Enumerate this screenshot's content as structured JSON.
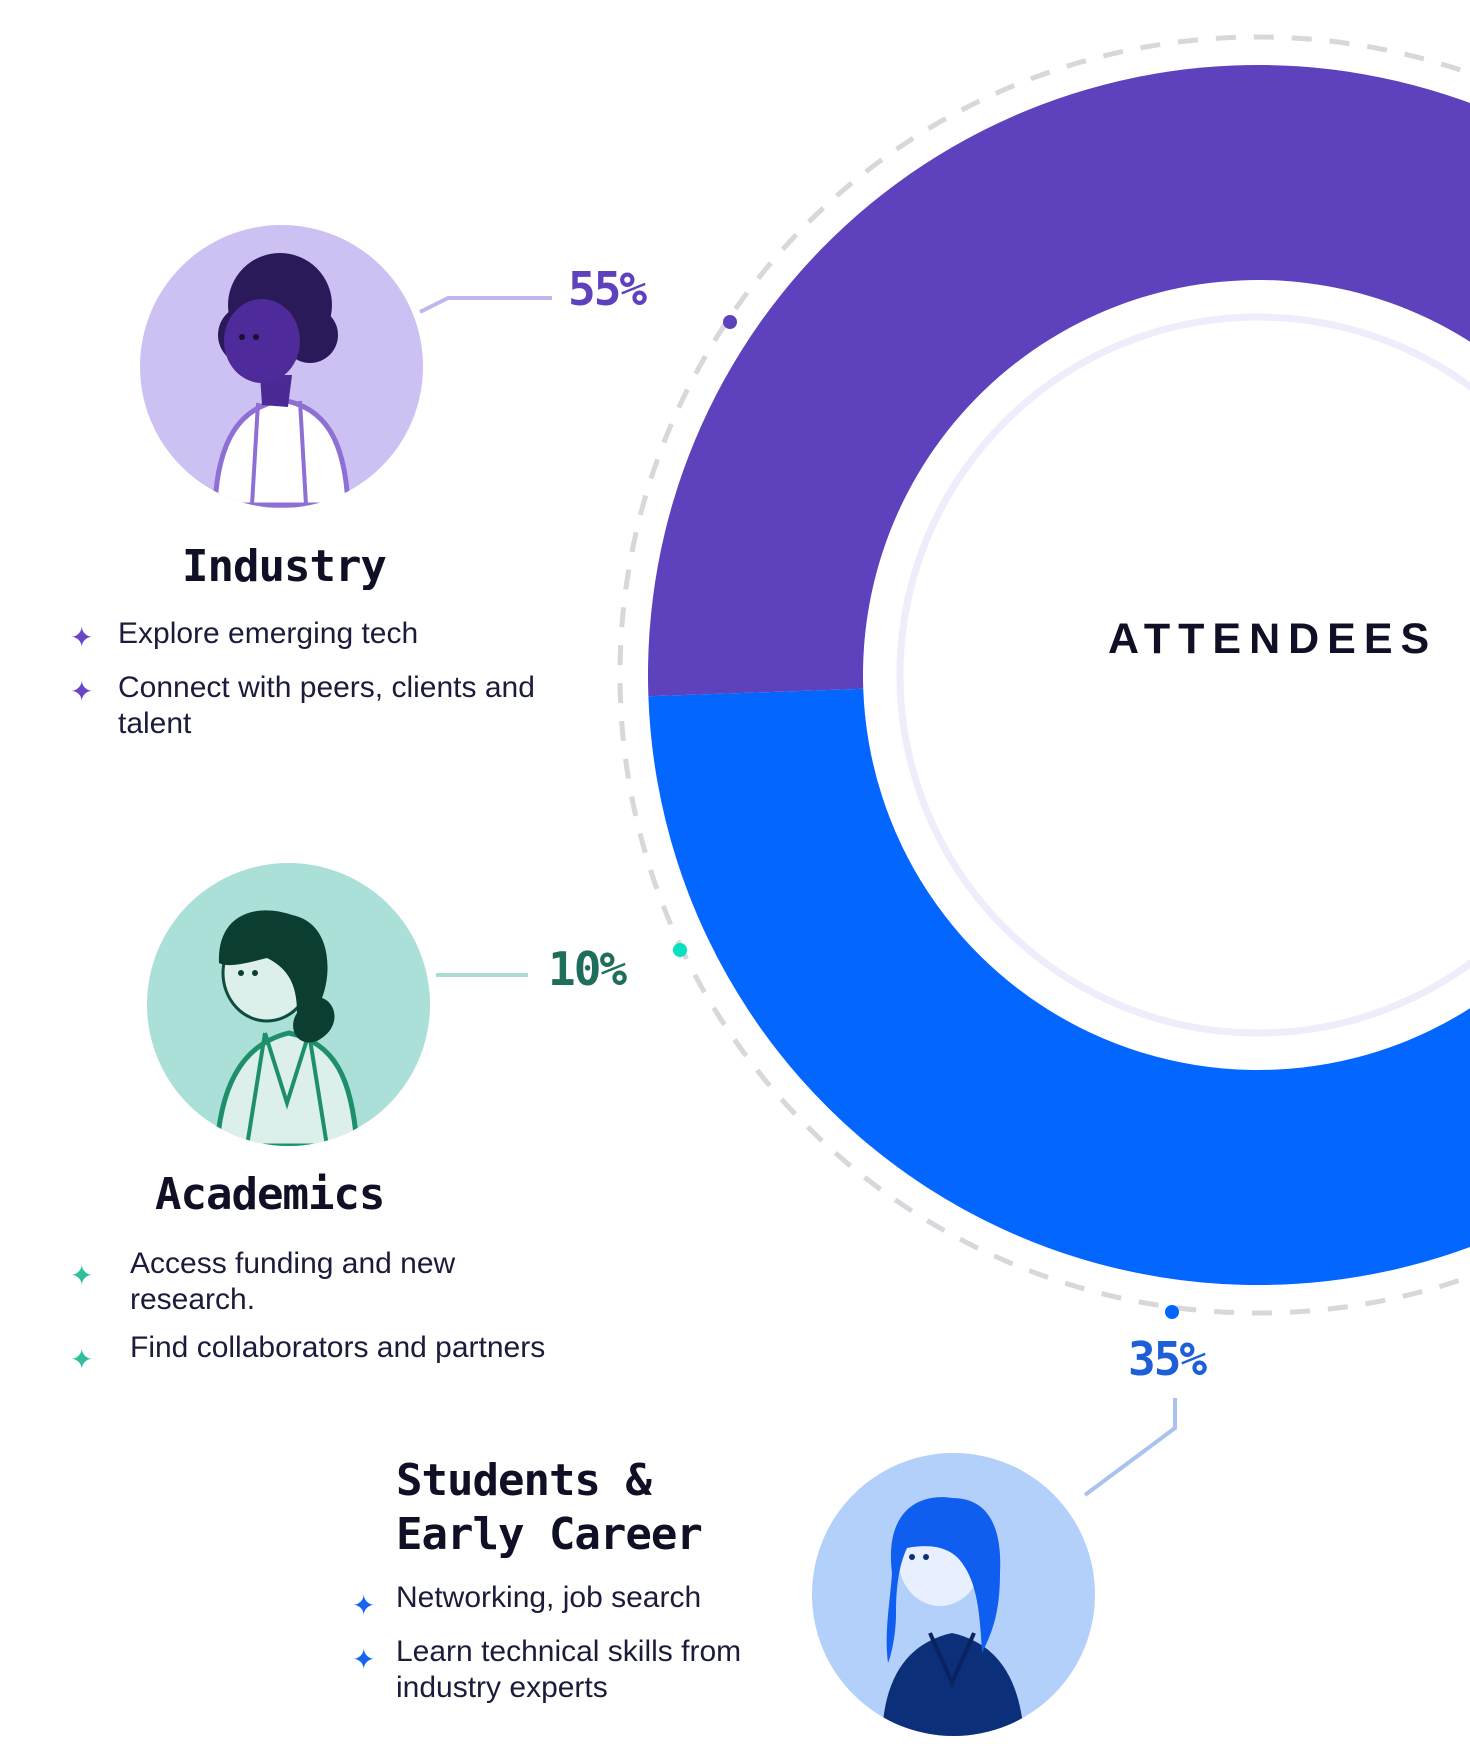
{
  "chart_data": {
    "type": "donut",
    "title": "ATTENDEES",
    "series": [
      {
        "name": "Industry",
        "value": 55,
        "label": "55%",
        "color": "#5e41bd"
      },
      {
        "name": "Academics",
        "value": 10,
        "label": "10%",
        "color": "#08e0bf"
      },
      {
        "name": "Students & Early Career",
        "value": 35,
        "label": "35%",
        "color": "#0366ff"
      }
    ]
  },
  "label_colors": {
    "industry": "#5e41bd",
    "academics": "#1f6e5c",
    "students": "#1d5fd6"
  },
  "segments": {
    "industry": {
      "title": "Industry",
      "bullets": [
        "Explore emerging tech",
        "Connect with peers, clients and talent"
      ],
      "star_color": "#6a45c8",
      "avatar_bg": "#cdc1f4",
      "icon": "industry-person-avatar"
    },
    "academics": {
      "title": "Academics",
      "bullets": [
        "Access funding and new research.",
        "Find collaborators and partners"
      ],
      "star_color": "#2fbf9c",
      "avatar_bg": "#abe0d8",
      "icon": "academic-person-avatar"
    },
    "students": {
      "title": "Students & Early Career",
      "title_lines": [
        "Students &",
        "Early Career"
      ],
      "bullets": [
        "Networking, job search",
        "Learn technical skills from industry experts"
      ],
      "star_color": "#1565f0",
      "avatar_bg": "#b3d0fb",
      "icon": "student-person-avatar"
    }
  },
  "bullet_icon": "sparkle-star"
}
